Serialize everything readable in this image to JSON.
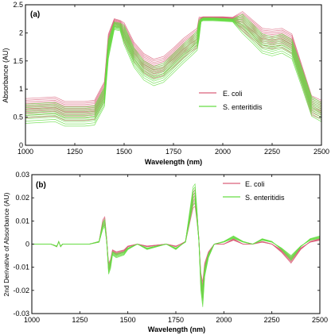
{
  "chart_data": [
    {
      "type": "line",
      "panel_label": "(a)",
      "xlabel": "Wavelength (nm)",
      "ylabel": "Absorbance (AU)",
      "xlim": [
        1000,
        2500
      ],
      "ylim": [
        0,
        2.5
      ],
      "xticks": [
        1000,
        1250,
        1500,
        1750,
        2000,
        2250,
        2500
      ],
      "yticks": [
        0,
        0.5,
        1,
        1.5,
        2,
        2.5
      ],
      "xtick_labels": [
        "1000",
        "1250",
        "1500",
        "1750",
        "2000",
        "2250",
        "2500"
      ],
      "ytick_labels": [
        "0",
        "0.5",
        "1",
        "1.5",
        "2",
        "2.5"
      ],
      "legend_position": "right",
      "grid": false,
      "series": [
        {
          "name": "E. coli",
          "color": "#d9607a",
          "x": [
            1000,
            1100,
            1150,
            1200,
            1300,
            1350,
            1400,
            1420,
            1450,
            1480,
            1500,
            1550,
            1600,
            1650,
            1700,
            1750,
            1800,
            1850,
            1870,
            1880,
            1890,
            1900,
            1950,
            2000,
            2050,
            2100,
            2150,
            2200,
            2250,
            2300,
            2350,
            2400,
            2450,
            2500
          ],
          "values": [
            0.65,
            0.67,
            0.68,
            0.6,
            0.6,
            0.62,
            0.95,
            1.8,
            2.18,
            2.15,
            2.0,
            1.65,
            1.45,
            1.35,
            1.4,
            1.55,
            1.72,
            1.85,
            1.9,
            2.1,
            2.25,
            2.26,
            2.26,
            2.26,
            2.25,
            2.2,
            2.05,
            1.9,
            1.88,
            1.9,
            1.8,
            1.25,
            0.7,
            0.62
          ]
        },
        {
          "name": "S. enteritidis",
          "color": "#66dd44",
          "x": [
            1000,
            1100,
            1150,
            1200,
            1300,
            1350,
            1400,
            1420,
            1450,
            1480,
            1500,
            1550,
            1600,
            1650,
            1700,
            1750,
            1800,
            1850,
            1870,
            1880,
            1890,
            1900,
            1950,
            2000,
            2050,
            2100,
            2150,
            2200,
            2250,
            2300,
            2350,
            2400,
            2450,
            2500
          ],
          "values": [
            0.55,
            0.57,
            0.58,
            0.5,
            0.5,
            0.52,
            0.85,
            1.7,
            2.12,
            2.1,
            1.95,
            1.55,
            1.32,
            1.22,
            1.28,
            1.45,
            1.62,
            1.78,
            1.85,
            2.05,
            2.22,
            2.24,
            2.24,
            2.23,
            2.22,
            2.15,
            1.98,
            1.8,
            1.75,
            1.8,
            1.7,
            1.2,
            0.68,
            0.58
          ]
        }
      ]
    },
    {
      "type": "line",
      "panel_label": "(b)",
      "xlabel": "Wavelength (nm)",
      "ylabel": "2nd Derivative of Absorbance (AU)",
      "xlim": [
        1000,
        2500
      ],
      "ylim": [
        -0.03,
        0.03
      ],
      "xticks": [
        1000,
        1250,
        1500,
        1750,
        2000,
        2250,
        2500
      ],
      "yticks": [
        -0.03,
        -0.02,
        -0.01,
        0,
        0.01,
        0.02,
        0.03
      ],
      "xtick_labels": [
        "1000",
        "1250",
        "1500",
        "1750",
        "2000",
        "2250",
        "2500"
      ],
      "ytick_labels": [
        "-0.03",
        "-0.02",
        "-0.01",
        "0",
        "0.01",
        "0.02",
        "0.03"
      ],
      "legend_position": "top-right",
      "grid": false,
      "series": [
        {
          "name": "E. coli",
          "color": "#d9607a",
          "x": [
            1000,
            1100,
            1130,
            1140,
            1150,
            1160,
            1200,
            1300,
            1350,
            1370,
            1380,
            1390,
            1400,
            1410,
            1420,
            1440,
            1480,
            1500,
            1550,
            1600,
            1700,
            1750,
            1800,
            1820,
            1840,
            1850,
            1860,
            1870,
            1880,
            1890,
            1900,
            1920,
            1950,
            2000,
            2050,
            2100,
            2150,
            2200,
            2250,
            2300,
            2350,
            2400,
            2450,
            2500
          ],
          "values": [
            0,
            0,
            -0.001,
            0.001,
            -0.001,
            0,
            0,
            0,
            0.001,
            0.009,
            0.01,
            0.002,
            -0.01,
            -0.008,
            -0.003,
            -0.004,
            -0.003,
            -0.001,
            0,
            -0.001,
            0,
            -0.001,
            0.001,
            0.01,
            0.019,
            0.02,
            0.012,
            0.002,
            -0.015,
            -0.02,
            -0.01,
            -0.004,
            0,
            0,
            0.002,
            0,
            0,
            0.001,
            0,
            -0.003,
            -0.007,
            -0.002,
            0.001,
            0.002
          ]
        },
        {
          "name": "S. enteritidis",
          "color": "#66dd44",
          "x": [
            1000,
            1100,
            1130,
            1140,
            1150,
            1160,
            1200,
            1300,
            1350,
            1370,
            1380,
            1390,
            1400,
            1410,
            1420,
            1440,
            1480,
            1500,
            1550,
            1600,
            1700,
            1750,
            1800,
            1820,
            1840,
            1850,
            1860,
            1870,
            1880,
            1890,
            1900,
            1920,
            1950,
            2000,
            2050,
            2100,
            2150,
            2200,
            2250,
            2300,
            2350,
            2400,
            2450,
            2500
          ],
          "values": [
            0,
            0,
            -0.001,
            0.001,
            -0.001,
            0,
            0,
            0,
            0.001,
            0.008,
            0.009,
            0.001,
            -0.011,
            -0.009,
            -0.004,
            -0.005,
            -0.004,
            -0.002,
            0,
            -0.002,
            0,
            -0.002,
            0.001,
            0.011,
            0.021,
            0.022,
            0.013,
            0.001,
            -0.017,
            -0.023,
            -0.012,
            -0.005,
            0,
            0.001,
            0.003,
            0.001,
            0,
            0.002,
            0.001,
            -0.002,
            -0.006,
            -0.001,
            0.002,
            0.003
          ]
        }
      ]
    }
  ]
}
